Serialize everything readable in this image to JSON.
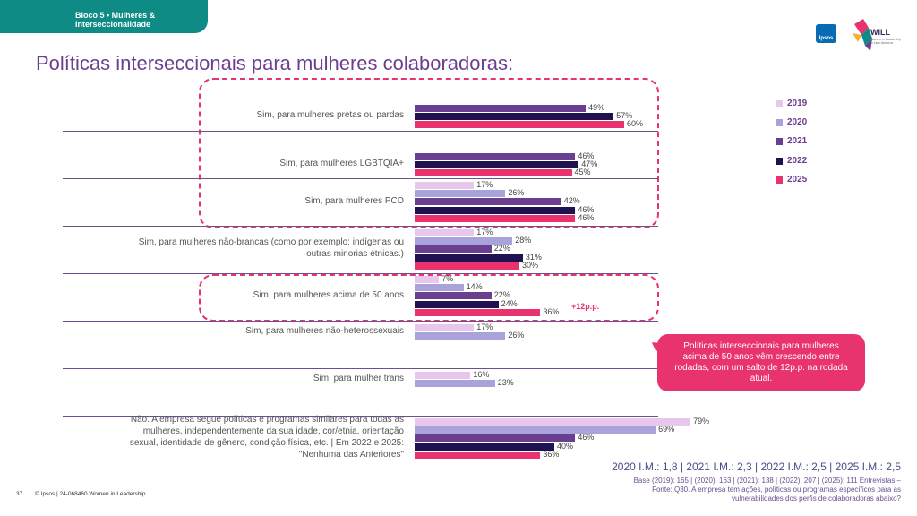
{
  "header": {
    "tab_line1": "Bloco 5 • Mulheres &",
    "tab_line2": "Interseccionalidade",
    "ipsos_logo": "Ipsos",
    "will_logo": "WILL",
    "will_sub": "Women in Leadership in Latin America"
  },
  "title": "Políticas interseccionais para mulheres colaboradoras:",
  "colors": {
    "2019": "#e7c8ec",
    "2020": "#a9a3dc",
    "2021": "#6b3f8f",
    "2022": "#1f1250",
    "2025": "#e8336e",
    "accent": "#e8336e",
    "tab": "#0f8b86"
  },
  "chart_data": {
    "type": "bar",
    "orientation": "horizontal",
    "title": "Políticas interseccionais para mulheres colaboradoras:",
    "xlim": [
      0,
      100
    ],
    "legend": [
      "2019",
      "2020",
      "2021",
      "2022",
      "2025"
    ],
    "legend_position": "right",
    "categories": [
      {
        "label_lines": [
          "Sim, para mulheres pretas ou pardas"
        ],
        "values": [
          {
            "year": "2021",
            "v": 49
          },
          {
            "year": "2022",
            "v": 57
          },
          {
            "year": "2025",
            "v": 60
          }
        ]
      },
      {
        "label_lines": [
          "Sim, para mulheres LGBTQIA+"
        ],
        "values": [
          {
            "year": "2021",
            "v": 46
          },
          {
            "year": "2022",
            "v": 47
          },
          {
            "year": "2025",
            "v": 45
          }
        ]
      },
      {
        "label_lines": [
          "Sim, para mulheres PCD"
        ],
        "values": [
          {
            "year": "2019",
            "v": 17
          },
          {
            "year": "2020",
            "v": 26
          },
          {
            "year": "2021",
            "v": 42
          },
          {
            "year": "2022",
            "v": 46
          },
          {
            "year": "2025",
            "v": 46
          }
        ]
      },
      {
        "label_lines": [
          "Sim, para mulheres não-brancas (como por exemplo: indígenas ou",
          "outras minorias étnicas.)"
        ],
        "values": [
          {
            "year": "2019",
            "v": 17
          },
          {
            "year": "2020",
            "v": 28
          },
          {
            "year": "2021",
            "v": 22
          },
          {
            "year": "2022",
            "v": 31
          },
          {
            "year": "2025",
            "v": 30
          }
        ]
      },
      {
        "label_lines": [
          "Sim, para mulheres acima de 50 anos"
        ],
        "values": [
          {
            "year": "2019",
            "v": 7
          },
          {
            "year": "2020",
            "v": 14
          },
          {
            "year": "2021",
            "v": 22
          },
          {
            "year": "2022",
            "v": 24
          },
          {
            "year": "2025",
            "v": 36
          }
        ]
      },
      {
        "label_lines": [
          "Sim, para mulheres não-heterossexuais"
        ],
        "values": [
          {
            "year": "2019",
            "v": 17
          },
          {
            "year": "2020",
            "v": 26
          }
        ]
      },
      {
        "label_lines": [
          "Sim, para mulher trans"
        ],
        "values": [
          {
            "year": "2019",
            "v": 16
          },
          {
            "year": "2020",
            "v": 23
          }
        ]
      },
      {
        "label_lines": [
          "Não. A empresa segue políticas e programas similares para todas as",
          "mulheres, independentemente da sua idade, cor/etnia, orientação",
          "sexual, identidade de gênero, condição física, etc. | Em 2022 e 2025:",
          "\"Nenhuma das Anteriores\""
        ],
        "values": [
          {
            "year": "2019",
            "v": 79
          },
          {
            "year": "2020",
            "v": 69
          },
          {
            "year": "2021",
            "v": 46
          },
          {
            "year": "2022",
            "v": 40
          },
          {
            "year": "2025",
            "v": 36
          }
        ]
      }
    ],
    "annotation": "+12p.p."
  },
  "callout": "Políticas interseccionais para mulheres acima de 50 anos vêm crescendo entre rodadas, com um salto de 12p.p. na rodada atual.",
  "im_line": "2020 I.M.: 1,8 | 2021 I.M.: 2,3 | 2022 I.M.: 2,5 | 2025 I.M.: 2,5",
  "base_line1": "Base (2019): 165 | (2020): 163 | (2021): 138 | (2022): 207 | (2025): 111 Entrevistas –",
  "base_line2": "Fonte: Q30. A empresa tem ações, políticas ou programas específicos para as",
  "base_line3": "vulnerabilidades dos perfis de colaboradoras abaixo?",
  "footer": {
    "page": "37",
    "copyright": "© Ipsos | 24-068460 Women in Leadership"
  }
}
